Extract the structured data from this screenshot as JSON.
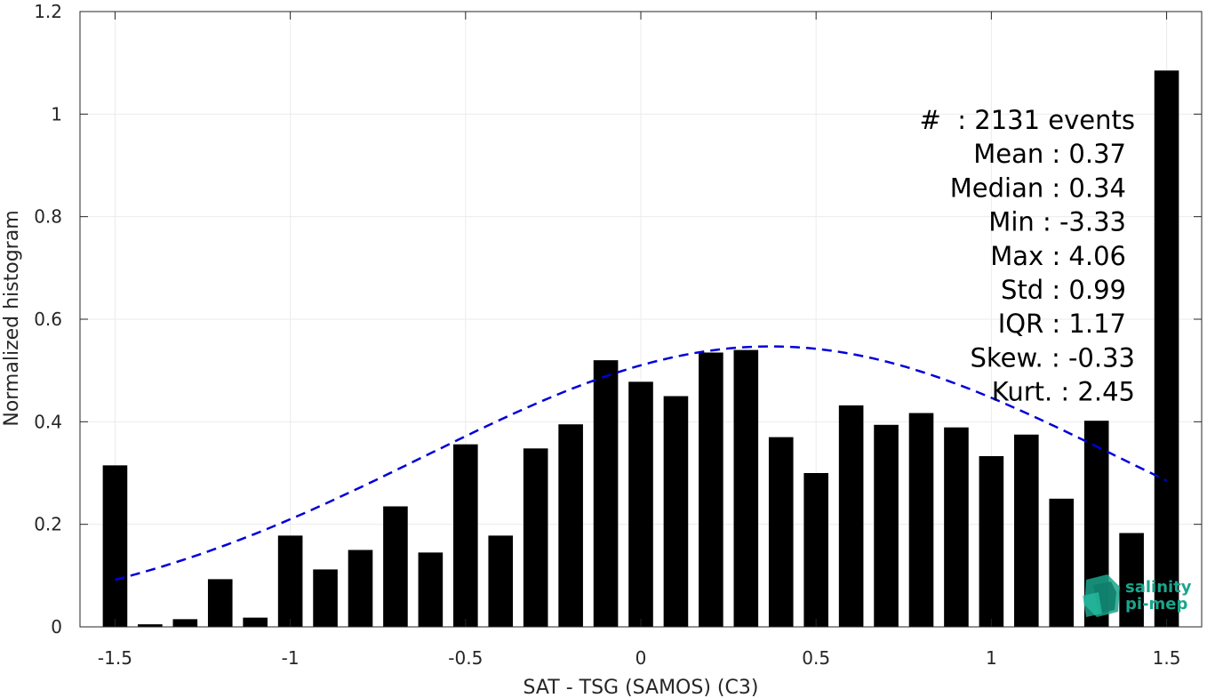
{
  "chart_data": {
    "type": "bar",
    "xlabel": "SAT - TSG (SAMOS) (C3)",
    "ylabel": "Normalized histogram",
    "xlim": [
      -1.6,
      1.6
    ],
    "ylim": [
      0,
      1.2
    ],
    "x_ticks": [
      -1.5,
      -1,
      -0.5,
      0,
      0.5,
      1,
      1.5
    ],
    "x_tick_labels": [
      "-1.5",
      "-1",
      "-0.5",
      "0",
      "0.5",
      "1",
      "1.5"
    ],
    "y_ticks": [
      0,
      0.2,
      0.4,
      0.6,
      0.8,
      1,
      1.2
    ],
    "y_tick_labels": [
      "0",
      "0.2",
      "0.4",
      "0.6",
      "0.8",
      "1",
      "1.2"
    ],
    "grid": true,
    "bar_width": 0.07,
    "bars": {
      "x": [
        -1.5,
        -1.4,
        -1.3,
        -1.2,
        -1.1,
        -1.0,
        -0.9,
        -0.8,
        -0.7,
        -0.6,
        -0.5,
        -0.4,
        -0.3,
        -0.2,
        -0.1,
        0.0,
        0.1,
        0.2,
        0.3,
        0.4,
        0.5,
        0.6,
        0.7,
        0.8,
        0.9,
        1.0,
        1.1,
        1.2,
        1.3,
        1.4,
        1.5
      ],
      "values": [
        0.315,
        0.005,
        0.015,
        0.093,
        0.018,
        0.178,
        0.112,
        0.15,
        0.235,
        0.145,
        0.356,
        0.178,
        0.348,
        0.395,
        0.52,
        0.478,
        0.45,
        0.535,
        0.54,
        0.37,
        0.3,
        0.432,
        0.394,
        0.417,
        0.389,
        0.333,
        0.375,
        0.25,
        0.402,
        0.183,
        1.085
      ],
      "color": "#000000"
    },
    "fit_curve": {
      "style": "dashed",
      "color": "#0000d8",
      "mean": 0.37,
      "std": 0.99,
      "peak": 0.547,
      "x_range": [
        -1.5,
        1.5
      ]
    },
    "annotation_lines": [
      "#  : 2131 events",
      "Mean : 0.37",
      "Median : 0.34",
      "Min : -3.33",
      "Max : 4.06",
      "Std : 0.99",
      "IQR : 1.17",
      "Skew. : -0.33",
      "Kurt. : 2.45"
    ]
  },
  "logo": {
    "line1": "salinity",
    "line2": "pi-mep",
    "color": "#1aa58c"
  }
}
